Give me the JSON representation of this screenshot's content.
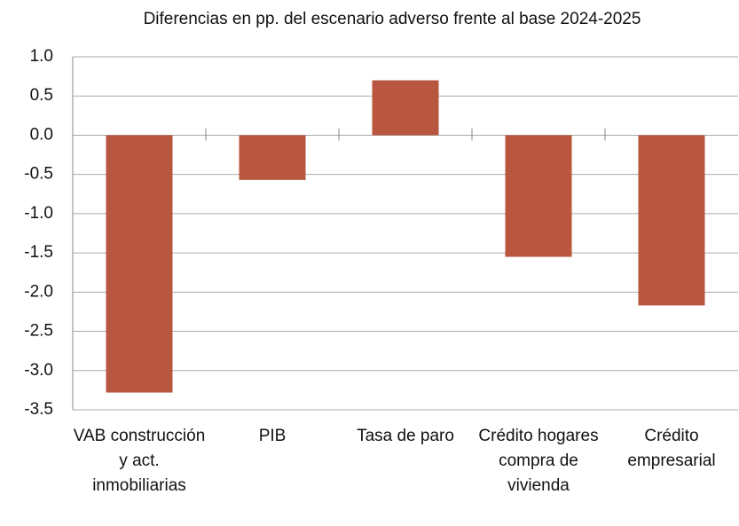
{
  "chart_data": {
    "type": "bar",
    "title": "Diferencias en pp. del escenario adverso frente al base 2024-2025",
    "categories": [
      "VAB construcción y act. inmobiliarias",
      "PIB",
      "Tasa de paro",
      "Crédito hogares compra de vivienda",
      "Crédito empresarial"
    ],
    "values": [
      -3.28,
      -0.57,
      0.7,
      -1.55,
      -2.17
    ],
    "color": "#b85640",
    "ylim": [
      -3.5,
      1.0
    ],
    "yticks": [
      {
        "value": -3.5,
        "label": "-3.5"
      },
      {
        "value": -3,
        "label": "-3.0"
      },
      {
        "value": -2.5,
        "label": "-2.5"
      },
      {
        "value": -2,
        "label": "-2.0"
      },
      {
        "value": -1.5,
        "label": "-1.5"
      },
      {
        "value": -1,
        "label": "-1.0"
      },
      {
        "value": -0.5,
        "label": "-0.5"
      },
      {
        "value": 0,
        "label": "0.0"
      },
      0.5,
      {
        "value": 1,
        "label": "1.0"
      }
    ],
    "grid": true
  }
}
